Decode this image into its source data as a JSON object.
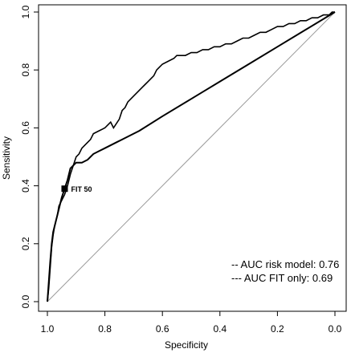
{
  "chart_data": {
    "type": "line",
    "xlabel": "Specificity",
    "ylabel": "Sensitivity",
    "xlim": [
      1.0,
      0.0
    ],
    "ylim": [
      0.0,
      1.0
    ],
    "x_ticks": [
      "1.0",
      "0.8",
      "0.6",
      "0.4",
      "0.2",
      "0.0"
    ],
    "y_ticks": [
      "0.0",
      "0.2",
      "0.4",
      "0.6",
      "0.8",
      "1.0"
    ],
    "x_tick_values": [
      1.0,
      0.8,
      0.6,
      0.4,
      0.2,
      0.0
    ],
    "y_tick_values": [
      0.0,
      0.2,
      0.4,
      0.6,
      0.8,
      1.0
    ],
    "grid": false,
    "legend_position": "bottom-right",
    "legend": [
      {
        "key": "risk",
        "label": "-- AUC risk model: 0.76"
      },
      {
        "key": "fit",
        "label": "--- AUC FIT only: 0.69"
      }
    ],
    "annotation": {
      "text": "FIT 50",
      "x": 0.94,
      "y": 0.39
    },
    "reference_line": {
      "x": [
        1.0,
        0.0
      ],
      "y": [
        0.0,
        1.0
      ],
      "color": "#9a9a9a"
    },
    "series": [
      {
        "key": "risk",
        "color": "#000000",
        "x": [
          1.0,
          0.995,
          0.99,
          0.985,
          0.98,
          0.975,
          0.97,
          0.965,
          0.96,
          0.95,
          0.94,
          0.93,
          0.92,
          0.91,
          0.9,
          0.89,
          0.88,
          0.87,
          0.86,
          0.85,
          0.84,
          0.82,
          0.8,
          0.79,
          0.78,
          0.77,
          0.75,
          0.74,
          0.73,
          0.72,
          0.71,
          0.7,
          0.69,
          0.68,
          0.67,
          0.66,
          0.65,
          0.64,
          0.63,
          0.62,
          0.61,
          0.6,
          0.58,
          0.56,
          0.55,
          0.54,
          0.52,
          0.5,
          0.48,
          0.46,
          0.44,
          0.42,
          0.4,
          0.38,
          0.36,
          0.34,
          0.32,
          0.3,
          0.28,
          0.26,
          0.24,
          0.22,
          0.2,
          0.18,
          0.16,
          0.14,
          0.12,
          0.1,
          0.08,
          0.06,
          0.04,
          0.02,
          0.01,
          0.0
        ],
        "y": [
          0.0,
          0.05,
          0.12,
          0.19,
          0.23,
          0.26,
          0.28,
          0.3,
          0.33,
          0.35,
          0.37,
          0.4,
          0.44,
          0.47,
          0.5,
          0.51,
          0.53,
          0.54,
          0.55,
          0.56,
          0.58,
          0.59,
          0.6,
          0.61,
          0.62,
          0.6,
          0.63,
          0.66,
          0.67,
          0.69,
          0.7,
          0.71,
          0.72,
          0.73,
          0.74,
          0.75,
          0.76,
          0.77,
          0.78,
          0.8,
          0.81,
          0.82,
          0.83,
          0.84,
          0.85,
          0.85,
          0.85,
          0.86,
          0.86,
          0.87,
          0.87,
          0.88,
          0.88,
          0.89,
          0.89,
          0.9,
          0.91,
          0.91,
          0.92,
          0.93,
          0.93,
          0.94,
          0.95,
          0.95,
          0.96,
          0.96,
          0.97,
          0.97,
          0.98,
          0.98,
          0.99,
          0.99,
          1.0,
          1.0
        ]
      },
      {
        "key": "fit",
        "color": "#000000",
        "x": [
          1.0,
          0.995,
          0.99,
          0.985,
          0.98,
          0.975,
          0.97,
          0.965,
          0.96,
          0.955,
          0.95,
          0.94,
          0.93,
          0.92,
          0.9,
          0.88,
          0.86,
          0.84,
          0.82,
          0.8,
          0.78,
          0.76,
          0.74,
          0.72,
          0.7,
          0.68,
          0.6,
          0.5,
          0.4,
          0.3,
          0.2,
          0.1,
          0.0
        ],
        "y": [
          0.0,
          0.07,
          0.14,
          0.2,
          0.24,
          0.26,
          0.28,
          0.3,
          0.32,
          0.34,
          0.36,
          0.39,
          0.42,
          0.46,
          0.48,
          0.48,
          0.49,
          0.51,
          0.52,
          0.53,
          0.54,
          0.55,
          0.56,
          0.57,
          0.58,
          0.59,
          0.64,
          0.7,
          0.76,
          0.82,
          0.88,
          0.94,
          1.0
        ]
      }
    ]
  }
}
